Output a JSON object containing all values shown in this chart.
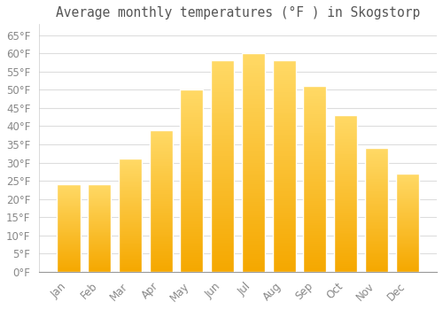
{
  "months": [
    "Jan",
    "Feb",
    "Mar",
    "Apr",
    "May",
    "Jun",
    "Jul",
    "Aug",
    "Sep",
    "Oct",
    "Nov",
    "Dec"
  ],
  "values": [
    24,
    24,
    31,
    39,
    50,
    58,
    60,
    58,
    51,
    43,
    34,
    27
  ],
  "bar_color_bottom": "#F5A800",
  "bar_color_top": "#FFD966",
  "bar_edge_color": "#FFFFFF",
  "title": "Average monthly temperatures (°F ) in Skogstorp",
  "title_fontsize": 10.5,
  "ylim": [
    0,
    68
  ],
  "yticks": [
    0,
    5,
    10,
    15,
    20,
    25,
    30,
    35,
    40,
    45,
    50,
    55,
    60,
    65
  ],
  "background_color": "#FFFFFF",
  "plot_bg_color": "#FFFFFF",
  "grid_color": "#DDDDDD",
  "tick_color": "#888888",
  "title_color": "#555555",
  "tick_fontsize": 8.5,
  "bar_width": 0.75
}
